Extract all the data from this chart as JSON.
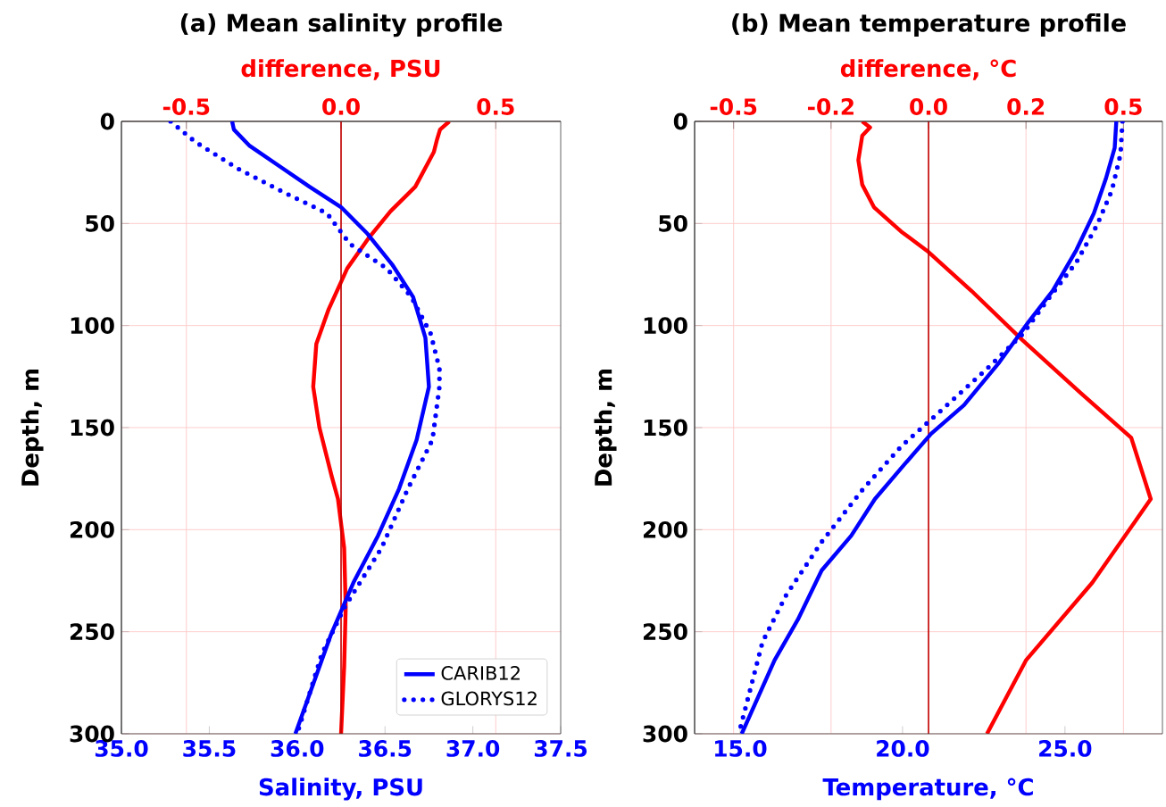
{
  "chart_data": [
    {
      "type": "line",
      "title": "(a) Mean salinity profile",
      "xlabel": "Salinity, PSU",
      "ylabel": "Depth, m",
      "x2label": "difference, PSU",
      "xlim": [
        35.0,
        37.5
      ],
      "xticks": [
        {
          "value": 35.0,
          "label": "35.0"
        },
        {
          "value": 35.5,
          "label": "35.5"
        },
        {
          "value": 36.0,
          "label": "36.0"
        },
        {
          "value": 36.5,
          "label": "36.5"
        },
        {
          "value": 37.0,
          "label": "37.0"
        },
        {
          "value": 37.5,
          "label": "37.5"
        }
      ],
      "x2lim": [
        -0.71,
        0.71
      ],
      "x2ticks": [
        {
          "value": -0.5,
          "label": "-0.5"
        },
        {
          "value": 0,
          "label": "0.0"
        },
        {
          "value": 0.5,
          "label": "0.5"
        }
      ],
      "ylim": [
        300,
        0
      ],
      "yticks": [
        0,
        50,
        100,
        150,
        200,
        250,
        300
      ],
      "grid": true,
      "legend": "bottom right",
      "ref_lines": [
        {
          "axis": "x2",
          "value": 0,
          "color": "#c00000"
        }
      ],
      "series": [
        {
          "name": "CARIB12",
          "color": "#0000ff",
          "line_style": "solid",
          "x": [
            35.63,
            35.64,
            35.73,
            35.9,
            36.07,
            36.25,
            36.4,
            36.54,
            36.66,
            36.73,
            36.75,
            36.68,
            36.58,
            36.46,
            36.32,
            36.19,
            36.09,
            35.99
          ],
          "values": [
            0,
            4,
            12,
            22,
            32,
            42,
            55,
            70,
            86,
            106,
            130,
            156,
            180,
            203,
            226,
            252,
            276,
            300
          ]
        },
        {
          "name": "GLORYS12",
          "color": "#0000ff",
          "line_style": "dotted",
          "x": [
            35.28,
            35.42,
            35.66,
            35.93,
            36.17,
            36.3,
            36.51,
            36.65,
            36.76,
            36.81,
            36.81,
            36.77,
            36.63,
            36.48,
            36.27,
            36.14,
            36.0
          ],
          "values": [
            0,
            10,
            23,
            35,
            45,
            60,
            72,
            86,
            104,
            121,
            130,
            156,
            180,
            209,
            238,
            261,
            300
          ]
        },
        {
          "color": "#ff0000",
          "line_style": "solid",
          "axis": "x2",
          "x": [
            0.35,
            0.32,
            0.31,
            0.3,
            0.24,
            0.16,
            0.09,
            0.02,
            -0.04,
            -0.08,
            -0.09,
            -0.07,
            -0.03,
            -0.01,
            0.01,
            0.015,
            0.01,
            0.0
          ],
          "values": [
            0,
            4,
            9,
            15,
            32,
            44,
            57,
            72,
            92,
            109,
            130,
            150,
            174,
            185,
            209,
            238,
            267,
            300
          ]
        }
      ]
    },
    {
      "type": "line",
      "title": "(b) Mean temperature profile",
      "xlabel": "Temperature, °C",
      "ylabel": "Depth, m",
      "x2label": "difference, °C",
      "xlim": [
        13.6,
        28.0
      ],
      "xticks": [
        {
          "value": 15,
          "label": "15.0"
        },
        {
          "value": 20,
          "label": "20.0"
        },
        {
          "value": 25,
          "label": "25.0"
        }
      ],
      "x2lim": [
        -0.6,
        0.6
      ],
      "x2ticks": [
        {
          "value": -0.5,
          "label": "-0.5"
        },
        {
          "value": -0.25,
          "label": "-0.2"
        },
        {
          "value": 0,
          "label": "0.0"
        },
        {
          "value": 0.25,
          "label": "0.2"
        },
        {
          "value": 0.5,
          "label": "0.5"
        }
      ],
      "ylim": [
        300,
        0
      ],
      "yticks": [
        0,
        50,
        100,
        150,
        200,
        250,
        300
      ],
      "grid": true,
      "ref_lines": [
        {
          "axis": "x2",
          "value": 0,
          "color": "#c00000"
        }
      ],
      "series": [
        {
          "color": "#0000ff",
          "line_style": "solid",
          "x": [
            26.58,
            26.53,
            26.26,
            25.89,
            25.35,
            24.62,
            23.89,
            22.98,
            21.89,
            20.88,
            20.06,
            19.15,
            18.42,
            17.51,
            16.78,
            16.06,
            15.05
          ],
          "values": [
            0,
            13,
            28,
            45,
            63,
            83,
            98,
            118,
            139,
            153,
            168,
            185,
            203,
            220,
            244,
            264,
            300
          ]
        },
        {
          "color": "#0000ff",
          "line_style": "dotted",
          "x": [
            26.77,
            26.71,
            26.44,
            25.98,
            25.35,
            24.53,
            23.71,
            22.61,
            21.16,
            19.97,
            18.79,
            17.51,
            16.42,
            15.69,
            14.96
          ],
          "values": [
            0,
            16,
            34,
            51,
            69,
            86,
            104,
            121,
            142,
            159,
            180,
            206,
            232,
            255,
            300
          ]
        },
        {
          "color": "#ff0000",
          "line_style": "solid",
          "axis": "x2",
          "x": [
            -0.17,
            -0.15,
            -0.17,
            -0.18,
            -0.17,
            -0.14,
            -0.07,
            0.0,
            0.11,
            0.24,
            0.39,
            0.52,
            0.57,
            0.42,
            0.25,
            0.15
          ],
          "values": [
            0,
            3,
            7,
            19,
            31,
            42,
            54,
            64,
            83,
            107,
            133,
            155,
            185,
            226,
            264,
            300
          ]
        }
      ]
    }
  ]
}
